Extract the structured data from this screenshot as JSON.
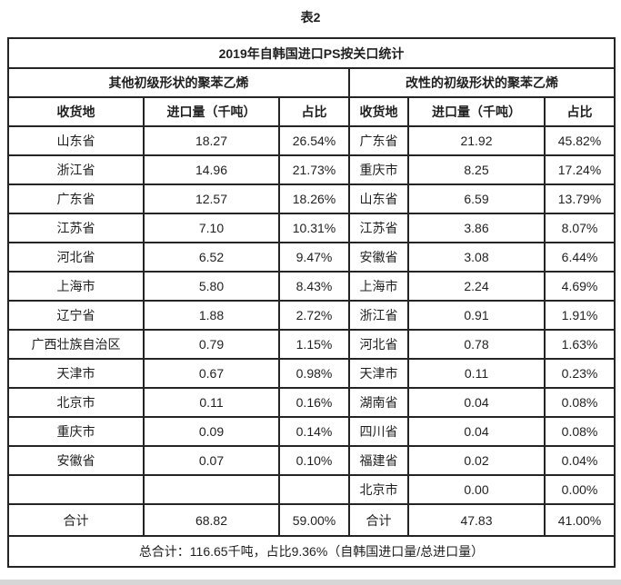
{
  "caption": "表2",
  "chart_data": {
    "type": "table",
    "title": "2019年自韩国进口PS按关口统计",
    "groups": [
      {
        "name": "其他初级形状的聚苯乙烯",
        "columns": [
          "收货地",
          "进口量（千吨）",
          "占比"
        ],
        "rows": [
          [
            "山东省",
            18.27,
            26.54
          ],
          [
            "浙江省",
            14.96,
            21.73
          ],
          [
            "广东省",
            12.57,
            18.26
          ],
          [
            "江苏省",
            7.1,
            10.31
          ],
          [
            "河北省",
            6.52,
            9.47
          ],
          [
            "上海市",
            5.8,
            8.43
          ],
          [
            "辽宁省",
            1.88,
            2.72
          ],
          [
            "广西壮族自治区",
            0.79,
            1.15
          ],
          [
            "天津市",
            0.67,
            0.98
          ],
          [
            "北京市",
            0.11,
            0.16
          ],
          [
            "重庆市",
            0.09,
            0.14
          ],
          [
            "安徽省",
            0.07,
            0.1
          ]
        ],
        "total": {
          "label": "合计",
          "amount": 68.82,
          "share": 59.0
        }
      },
      {
        "name": "改性的初级形状的聚苯乙烯",
        "columns": [
          "收货地",
          "进口量（千吨）",
          "占比"
        ],
        "rows": [
          [
            "广东省",
            21.92,
            45.82
          ],
          [
            "重庆市",
            8.25,
            17.24
          ],
          [
            "山东省",
            6.59,
            13.79
          ],
          [
            "江苏省",
            3.86,
            8.07
          ],
          [
            "安徽省",
            3.08,
            6.44
          ],
          [
            "上海市",
            2.24,
            4.69
          ],
          [
            "浙江省",
            0.91,
            1.91
          ],
          [
            "河北省",
            0.78,
            1.63
          ],
          [
            "天津市",
            0.11,
            0.23
          ],
          [
            "湖南省",
            0.04,
            0.08
          ],
          [
            "四川省",
            0.04,
            0.08
          ],
          [
            "福建省",
            0.02,
            0.04
          ],
          [
            "北京市",
            0.0,
            0.0
          ]
        ],
        "total": {
          "label": "合计",
          "amount": 47.83,
          "share": 41.0
        }
      }
    ],
    "grand_total": "总合计：116.65千吨，占比9.36%（自韩国进口量/总进口量）"
  }
}
